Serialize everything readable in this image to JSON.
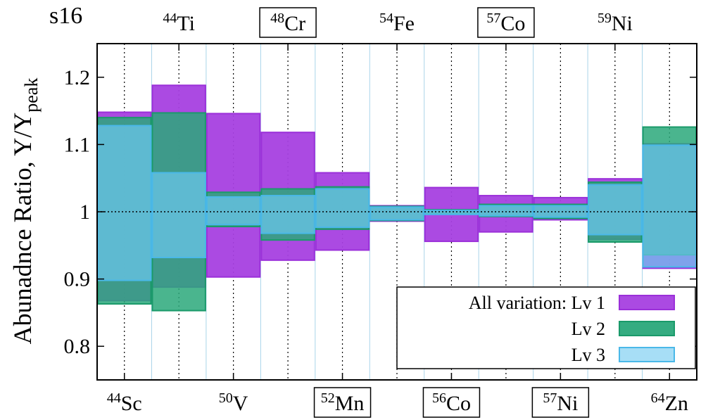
{
  "chart_data": {
    "type": "box",
    "title": "s16",
    "ylabel": "Abunadnce Ratio, Y/Y",
    "ylabel_sub": "peak",
    "ylim": [
      0.75,
      1.25
    ],
    "yticks": [
      0.8,
      0.9,
      1,
      1.1,
      1.2
    ],
    "ytick_labels": [
      "0.8",
      "0.9",
      "1",
      "1.1",
      "1.2"
    ],
    "reference_line": 1.0,
    "bottom_isotopes": [
      {
        "mass": "44",
        "element": "Sc",
        "boxed": false
      },
      {
        "mass": "50",
        "element": "V",
        "boxed": false
      },
      {
        "mass": "52",
        "element": "Mn",
        "boxed": true
      },
      {
        "mass": "56",
        "element": "Co",
        "boxed": true
      },
      {
        "mass": "57",
        "element": "Ni",
        "boxed": true
      },
      {
        "mass": "64",
        "element": "Zn",
        "boxed": false
      }
    ],
    "top_isotopes": [
      {
        "mass": "44",
        "element": "Ti",
        "boxed": false
      },
      {
        "mass": "48",
        "element": "Cr",
        "boxed": true
      },
      {
        "mass": "54",
        "element": "Fe",
        "boxed": false
      },
      {
        "mass": "57",
        "element": "Co",
        "boxed": true
      },
      {
        "mass": "59",
        "element": "Ni",
        "boxed": false
      }
    ],
    "isotope_order": [
      "44Sc",
      "44Ti",
      "50V",
      "48Cr",
      "52Mn",
      "54Fe",
      "56Co",
      "57Co",
      "57Ni",
      "59Ni",
      "64Zn"
    ],
    "series": [
      {
        "name": "All variation: Lv 1",
        "legend": "All variation: Lv 1",
        "color": "#9b30d9",
        "fill": "#a640e0",
        "ranges": [
          [
            0.868,
            1.148
          ],
          [
            0.888,
            1.188
          ],
          [
            0.903,
            1.146
          ],
          [
            0.928,
            1.118
          ],
          [
            0.943,
            1.058
          ],
          [
            0.986,
            1.009
          ],
          [
            0.956,
            1.036
          ],
          [
            0.97,
            1.024
          ],
          [
            0.988,
            1.021
          ],
          [
            0.959,
            1.049
          ],
          [
            0.916,
            1.101
          ]
        ]
      },
      {
        "name": "Lv 2",
        "legend": "Lv 2",
        "color": "#1a9a6a",
        "fill": "#2aa87a",
        "ranges": [
          [
            0.863,
            1.14
          ],
          [
            0.853,
            1.147
          ],
          [
            0.978,
            1.029
          ],
          [
            0.958,
            1.034
          ],
          [
            0.974,
            1.037
          ],
          [
            0.987,
            1.008
          ],
          [
            0.997,
            1.003
          ],
          [
            0.993,
            1.011
          ],
          [
            0.99,
            1.011
          ],
          [
            0.955,
            1.044
          ],
          [
            0.936,
            1.126
          ]
        ]
      },
      {
        "name": "Lv 3",
        "legend": "Lv 3",
        "color": "#4ab8e8",
        "fill": "#6cc8f0",
        "ranges": [
          [
            0.898,
            1.128
          ],
          [
            0.932,
            1.058
          ],
          [
            0.981,
            1.022
          ],
          [
            0.968,
            1.024
          ],
          [
            0.977,
            1.034
          ],
          [
            0.988,
            1.007
          ],
          [
            0.996,
            1.002
          ],
          [
            0.994,
            1.009
          ],
          [
            0.992,
            1.009
          ],
          [
            0.966,
            1.04
          ],
          [
            0.918,
            1.099
          ]
        ]
      }
    ]
  }
}
